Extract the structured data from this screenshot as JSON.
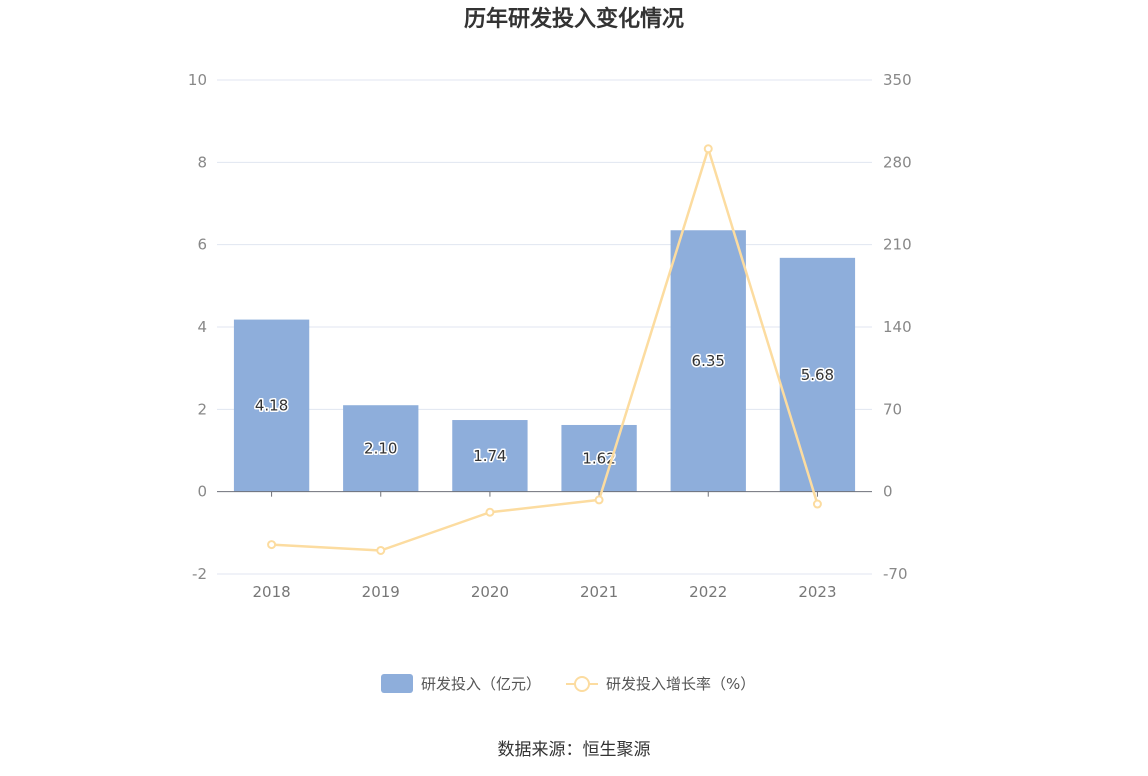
{
  "chart_data": {
    "type": "bar",
    "title": "历年研发投入变化情况",
    "categories": [
      "2018",
      "2019",
      "2020",
      "2021",
      "2022",
      "2023"
    ],
    "series": [
      {
        "name": "研发投入（亿元）",
        "type": "bar",
        "axis": "left",
        "color": "#8eaedb",
        "values": [
          4.18,
          2.1,
          1.74,
          1.62,
          6.35,
          5.68
        ],
        "labels": [
          "4.18",
          "2.10",
          "1.74",
          "1.62",
          "6.35",
          "5.68"
        ]
      },
      {
        "name": "研发投入增长率（%）",
        "type": "line",
        "axis": "right",
        "color": "#fcdca0",
        "values": [
          -45,
          -50,
          -17.5,
          -7,
          291.5,
          -10.5
        ]
      }
    ],
    "left_axis": {
      "min": -2,
      "max": 10,
      "ticks": [
        -2,
        0,
        2,
        4,
        6,
        8,
        10
      ]
    },
    "right_axis": {
      "min": -70,
      "max": 350,
      "ticks": [
        -70,
        0,
        70,
        140,
        210,
        280,
        350
      ]
    },
    "grid": true,
    "legend_position": "bottom"
  },
  "source": "数据来源：恒生聚源"
}
